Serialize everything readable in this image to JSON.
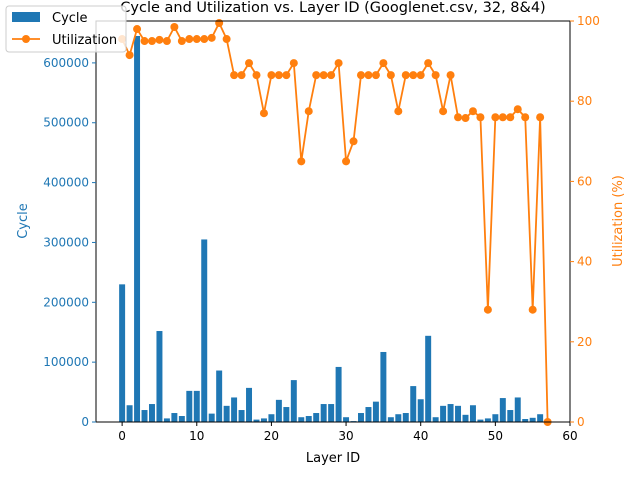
{
  "chart_data": {
    "type": "bar+line",
    "title": "Cycle and Utilization vs. Layer ID (Googlenet.csv, 32, 8&4)",
    "xlabel": "Layer ID",
    "y1label": "Cycle",
    "y2label": "Utilization (%)",
    "xlim": [
      -3.5,
      60
    ],
    "y1lim": [
      0,
      670000
    ],
    "y2lim": [
      0,
      100
    ],
    "xticks": [
      0,
      10,
      20,
      30,
      40,
      50,
      60
    ],
    "y1ticks": [
      0,
      100000,
      200000,
      300000,
      400000,
      500000,
      600000
    ],
    "y2ticks": [
      0,
      20,
      40,
      60,
      80,
      100
    ],
    "legend_position": "top-left",
    "colors": {
      "cycle": "#1f77b4",
      "utilization": "#ff7f0e"
    },
    "series": [
      {
        "name": "Cycle",
        "kind": "bar",
        "values": [
          230000,
          28000,
          645000,
          20000,
          30000,
          152000,
          6000,
          15000,
          10000,
          52000,
          52000,
          305000,
          14000,
          86000,
          27000,
          41000,
          20000,
          57000,
          4000,
          6000,
          13000,
          37000,
          25000,
          70000,
          8000,
          10000,
          15000,
          30000,
          30000,
          92000,
          8000,
          1500,
          15000,
          25000,
          34000,
          117000,
          8000,
          13000,
          15000,
          60000,
          38000,
          144000,
          8000,
          27000,
          30000,
          27000,
          12000,
          28000,
          4000,
          6000,
          13000,
          40000,
          20000,
          41000,
          5000,
          7000,
          13000,
          300
        ]
      },
      {
        "name": "Utilization",
        "kind": "line",
        "values": [
          95.5,
          91.5,
          98,
          95,
          95,
          95.3,
          95,
          98.5,
          95,
          95.5,
          95.5,
          95.5,
          95.8,
          99.5,
          95.5,
          86.5,
          86.5,
          89.5,
          86.5,
          77,
          86.5,
          86.5,
          86.5,
          89.5,
          65,
          77.5,
          86.5,
          86.5,
          86.5,
          89.5,
          65,
          70,
          86.5,
          86.5,
          86.5,
          89.5,
          86.5,
          77.5,
          86.5,
          86.5,
          86.5,
          89.5,
          86.5,
          77.5,
          86.5,
          76,
          75.8,
          77.5,
          76,
          28,
          76,
          76,
          76,
          78,
          76,
          28,
          76,
          0
        ]
      }
    ]
  }
}
